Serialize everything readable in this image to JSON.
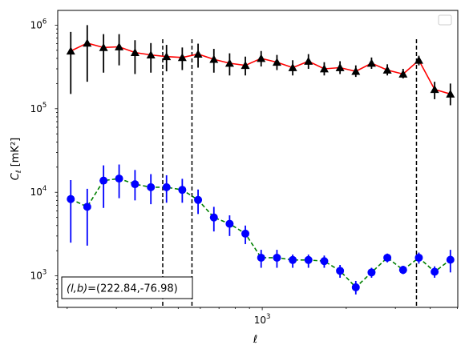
{
  "chart_data": {
    "type": "line",
    "title": "",
    "xlabel": "ℓ",
    "ylabel": "C",
    "ylabel_sub": "ℓ",
    "ylabel_unit": "  [mK²]",
    "xscale": "log",
    "yscale": "log",
    "xlim": [
      185,
      5020
    ],
    "ylim": [
      420,
      1500000
    ],
    "grid": false,
    "legend": "top-right",
    "x_tick_labels": [
      {
        "value": 1000,
        "base": "10",
        "exp": "3"
      }
    ],
    "y_tick_labels": [
      {
        "value": 1000,
        "base": "10",
        "exp": "3"
      },
      {
        "value": 10000,
        "base": "10",
        "exp": "4"
      },
      {
        "value": 100000,
        "base": "10",
        "exp": "5"
      },
      {
        "value": 1000000,
        "base": "10",
        "exp": "6"
      }
    ],
    "vlines": [
      440,
      560,
      3570
    ],
    "annotation": {
      "text": "(l,b)=(222.84,-76.98)",
      "prefix_italic": "(l,b)",
      "suffix": "=(222.84,-76.98)"
    },
    "series": [
      {
        "line_color": "#ff0000",
        "line_style": "solid",
        "marker": "triangle",
        "marker_color": "#000000",
        "error_color": "#000000",
        "x": [
          206,
          236,
          270,
          307,
          350,
          399,
          454,
          517,
          589,
          671,
          764,
          870,
          991,
          1129,
          1286,
          1464,
          1668,
          1900,
          2164,
          2464,
          2807,
          3197,
          3641,
          4147,
          4723
        ],
        "y": [
          490000,
          610000,
          540000,
          550000,
          470000,
          440000,
          420000,
          410000,
          450000,
          390000,
          350000,
          330000,
          400000,
          360000,
          310000,
          370000,
          300000,
          310000,
          280000,
          350000,
          290000,
          260000,
          380000,
          170000,
          150000
        ],
        "y_low": [
          150000,
          210000,
          270000,
          330000,
          260000,
          270000,
          280000,
          290000,
          310000,
          270000,
          250000,
          250000,
          320000,
          290000,
          250000,
          300000,
          250000,
          260000,
          240000,
          300000,
          250000,
          230000,
          330000,
          130000,
          110000
        ],
        "y_high": [
          830000,
          1000000,
          780000,
          780000,
          660000,
          610000,
          580000,
          540000,
          600000,
          520000,
          460000,
          420000,
          490000,
          440000,
          380000,
          450000,
          360000,
          370000,
          330000,
          410000,
          340000,
          300000,
          430000,
          210000,
          200000
        ]
      },
      {
        "line_color": "#008000",
        "line_style": "dashed",
        "marker": "circle",
        "marker_color": "#0000ff",
        "error_color": "#0000ff",
        "x": [
          206,
          236,
          270,
          307,
          350,
          399,
          454,
          517,
          589,
          671,
          764,
          870,
          991,
          1129,
          1286,
          1464,
          1668,
          1900,
          2164,
          2464,
          2807,
          3197,
          3641,
          4147,
          4723
        ],
        "y": [
          8300,
          6700,
          13800,
          14600,
          12500,
          11500,
          11500,
          10700,
          8100,
          5000,
          4200,
          3200,
          1650,
          1650,
          1550,
          1550,
          1500,
          1150,
          730,
          1100,
          1650,
          1180,
          1650,
          1120,
          1560
        ],
        "y_low": [
          2500,
          2300,
          6500,
          8500,
          8000,
          7200,
          7500,
          7500,
          5500,
          3400,
          3000,
          2400,
          1250,
          1250,
          1250,
          1250,
          1250,
          950,
          600,
          950,
          1450,
          1050,
          1400,
          950,
          1100
        ],
        "y_high": [
          14000,
          11000,
          21000,
          21500,
          18500,
          16500,
          16000,
          14500,
          10800,
          6700,
          5300,
          4000,
          2050,
          2050,
          1800,
          1800,
          1750,
          1350,
          870,
          1250,
          1850,
          1320,
          1900,
          1300,
          2050
        ]
      }
    ]
  }
}
